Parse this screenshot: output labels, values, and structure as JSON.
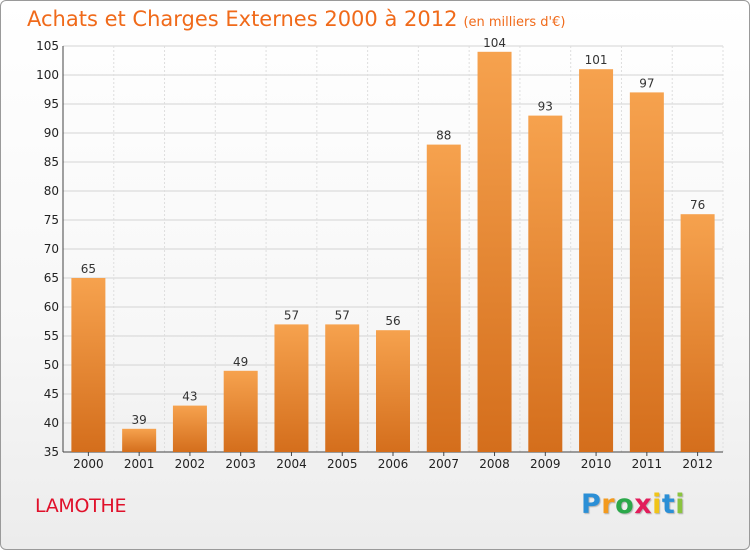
{
  "title": "Achats et Charges Externes 2000 à 2012",
  "subtitle": "(en milliers d'€)",
  "commune": "LAMOTHE",
  "logo": {
    "letters": [
      "P",
      "r",
      "o",
      "x",
      "i",
      "t",
      "i"
    ],
    "colors": [
      "#2b8fd6",
      "#f39a1e",
      "#2ba84a",
      "#e21d5b",
      "#f0c419",
      "#2b8fd6",
      "#8bc43f"
    ]
  },
  "colors": {
    "bar_top": "#f6a24e",
    "bar_bottom": "#d46e1c",
    "title": "#f06a1a",
    "commune": "#e0102a"
  },
  "chart_data": {
    "type": "bar",
    "title": "Achats et Charges Externes 2000 à 2012",
    "subtitle": "(en milliers d'€)",
    "categories": [
      "2000",
      "2001",
      "2002",
      "2003",
      "2004",
      "2005",
      "2006",
      "2007",
      "2008",
      "2009",
      "2010",
      "2011",
      "2012"
    ],
    "values": [
      65,
      39,
      43,
      49,
      57,
      57,
      56,
      88,
      104,
      93,
      101,
      97,
      76
    ],
    "ylim": [
      35,
      105
    ],
    "yticks": [
      35,
      40,
      45,
      50,
      55,
      60,
      65,
      70,
      75,
      80,
      85,
      90,
      95,
      100,
      105
    ],
    "grid": true,
    "data_labels": true
  }
}
